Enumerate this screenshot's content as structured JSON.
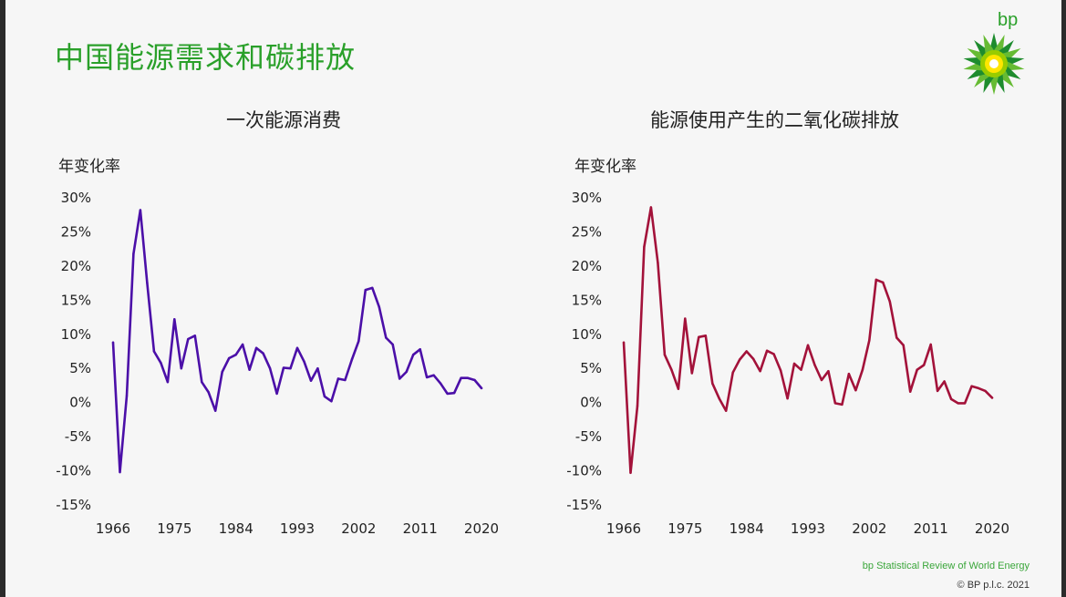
{
  "slide": {
    "title": "中国能源需求和碳排放",
    "brand": "bp",
    "footer_source": "bp Statistical Review of World Energy",
    "footer_copyright": "© BP p.l.c. 2021",
    "title_color": "#2aa02a"
  },
  "chart_data": [
    {
      "type": "line",
      "title": "一次能源消费",
      "ylabel": "年变化率",
      "xlabel": "",
      "color": "#4b0fa8",
      "ylim": [
        -15,
        30
      ],
      "yticks": [
        30,
        25,
        20,
        15,
        10,
        5,
        0,
        -5,
        -10,
        -15
      ],
      "ytick_labels": [
        "30%",
        "25%",
        "20%",
        "15%",
        "10%",
        "5%",
        "0%",
        "-5%",
        "-10%",
        "-15%"
      ],
      "xlim": [
        1966,
        2020
      ],
      "xticks": [
        1966,
        1975,
        1984,
        1993,
        2002,
        2011,
        2020
      ],
      "grid": false,
      "x": [
        1966,
        1967,
        1968,
        1969,
        1970,
        1971,
        1972,
        1973,
        1974,
        1975,
        1976,
        1977,
        1978,
        1979,
        1980,
        1981,
        1982,
        1983,
        1984,
        1985,
        1986,
        1987,
        1988,
        1989,
        1990,
        1991,
        1992,
        1993,
        1994,
        1995,
        1996,
        1997,
        1998,
        1999,
        2000,
        2001,
        2002,
        2003,
        2004,
        2005,
        2006,
        2007,
        2008,
        2009,
        2010,
        2011,
        2012,
        2013,
        2014,
        2015,
        2016,
        2017,
        2018,
        2019,
        2020
      ],
      "y": [
        8.8,
        -10.2,
        1.0,
        21.8,
        28.2,
        17.5,
        7.5,
        5.8,
        3.0,
        12.2,
        5.0,
        9.3,
        9.8,
        3.0,
        1.5,
        -1.2,
        4.5,
        6.5,
        7.0,
        8.5,
        4.8,
        8.0,
        7.2,
        5.0,
        1.3,
        5.1,
        5.0,
        8.0,
        6.0,
        3.2,
        5.0,
        0.9,
        0.2,
        3.5,
        3.3,
        6.3,
        9.0,
        16.5,
        16.8,
        14.0,
        9.5,
        8.5,
        3.5,
        4.5,
        7.0,
        7.8,
        3.7,
        4.0,
        2.8,
        1.3,
        1.4,
        3.6,
        3.6,
        3.3,
        2.1
      ]
    },
    {
      "type": "line",
      "title": "能源使用产生的二氧化碳排放",
      "ylabel": "年变化率",
      "xlabel": "",
      "color": "#a3123a",
      "ylim": [
        -15,
        30
      ],
      "yticks": [
        30,
        25,
        20,
        15,
        10,
        5,
        0,
        -5,
        -10,
        -15
      ],
      "ytick_labels": [
        "30%",
        "25%",
        "20%",
        "15%",
        "10%",
        "5%",
        "0%",
        "-5%",
        "-10%",
        "-15%"
      ],
      "xlim": [
        1966,
        2020
      ],
      "xticks": [
        1966,
        1975,
        1984,
        1993,
        2002,
        2011,
        2020
      ],
      "grid": false,
      "x": [
        1966,
        1967,
        1968,
        1969,
        1970,
        1971,
        1972,
        1973,
        1974,
        1975,
        1976,
        1977,
        1978,
        1979,
        1980,
        1981,
        1982,
        1983,
        1984,
        1985,
        1986,
        1987,
        1988,
        1989,
        1990,
        1991,
        1992,
        1993,
        1994,
        1995,
        1996,
        1997,
        1998,
        1999,
        2000,
        2001,
        2002,
        2003,
        2004,
        2005,
        2006,
        2007,
        2008,
        2009,
        2010,
        2011,
        2012,
        2013,
        2014,
        2015,
        2016,
        2017,
        2018,
        2019,
        2020
      ],
      "y": [
        8.8,
        -10.3,
        -0.5,
        22.8,
        28.6,
        20.5,
        7.0,
        4.8,
        2.0,
        12.3,
        4.3,
        9.6,
        9.8,
        2.8,
        0.6,
        -1.2,
        4.4,
        6.3,
        7.5,
        6.4,
        4.6,
        7.6,
        7.1,
        4.7,
        0.6,
        5.7,
        4.8,
        8.4,
        5.5,
        3.3,
        4.6,
        -0.1,
        -0.3,
        4.2,
        1.8,
        4.8,
        9.1,
        18.0,
        17.6,
        14.8,
        9.5,
        8.4,
        1.6,
        4.8,
        5.5,
        8.5,
        1.7,
        3.1,
        0.5,
        -0.1,
        -0.1,
        2.4,
        2.1,
        1.7,
        0.7
      ]
    }
  ]
}
